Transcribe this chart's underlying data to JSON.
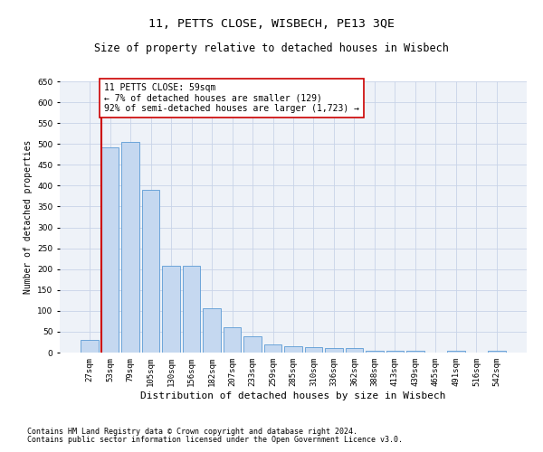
{
  "title": "11, PETTS CLOSE, WISBECH, PE13 3QE",
  "subtitle": "Size of property relative to detached houses in Wisbech",
  "xlabel": "Distribution of detached houses by size in Wisbech",
  "ylabel": "Number of detached properties",
  "categories": [
    "27sqm",
    "53sqm",
    "79sqm",
    "105sqm",
    "130sqm",
    "156sqm",
    "182sqm",
    "207sqm",
    "233sqm",
    "259sqm",
    "285sqm",
    "310sqm",
    "336sqm",
    "362sqm",
    "388sqm",
    "413sqm",
    "439sqm",
    "465sqm",
    "491sqm",
    "516sqm",
    "542sqm"
  ],
  "values": [
    30,
    492,
    504,
    390,
    208,
    208,
    107,
    60,
    40,
    19,
    15,
    14,
    11,
    10,
    5,
    5,
    5,
    1,
    5,
    1,
    5
  ],
  "bar_color": "#c5d8f0",
  "bar_edge_color": "#5b9bd5",
  "vline_color": "#cc0000",
  "annotation_text": "11 PETTS CLOSE: 59sqm\n← 7% of detached houses are smaller (129)\n92% of semi-detached houses are larger (1,723) →",
  "annotation_box_color": "#ffffff",
  "annotation_box_edge_color": "#cc0000",
  "ylim": [
    0,
    650
  ],
  "yticks": [
    0,
    50,
    100,
    150,
    200,
    250,
    300,
    350,
    400,
    450,
    500,
    550,
    600,
    650
  ],
  "grid_color": "#c8d4e8",
  "background_color": "#eef2f8",
  "footer_line1": "Contains HM Land Registry data © Crown copyright and database right 2024.",
  "footer_line2": "Contains public sector information licensed under the Open Government Licence v3.0.",
  "title_fontsize": 9.5,
  "subtitle_fontsize": 8.5,
  "xlabel_fontsize": 8,
  "ylabel_fontsize": 7,
  "tick_fontsize": 6.5,
  "annotation_fontsize": 7,
  "footer_fontsize": 6
}
